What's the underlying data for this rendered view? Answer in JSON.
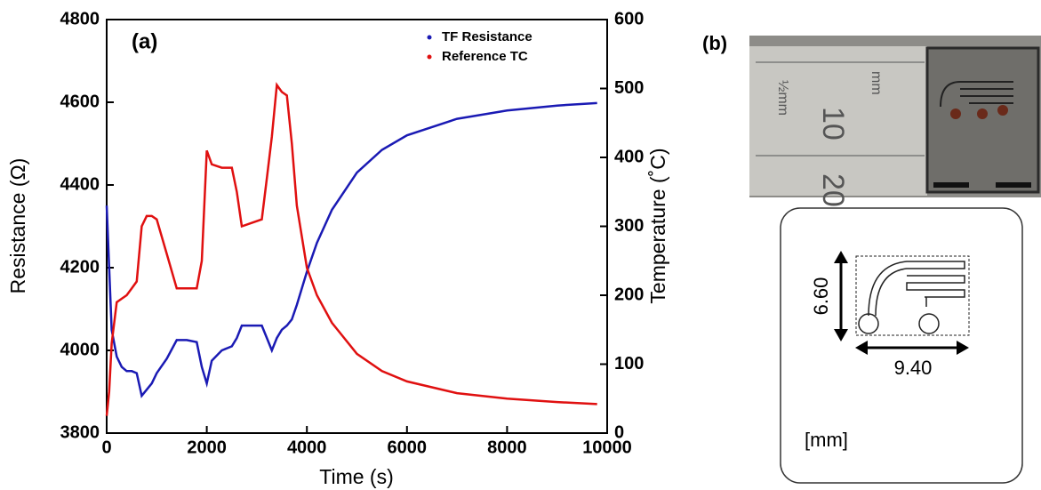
{
  "chart_data": {
    "type": "line",
    "annotation": "(a)",
    "x_label": "Time (s)",
    "y_label": "Resistance (Ω)",
    "y2_label": "Temperature (˚C)",
    "x": [
      0,
      50,
      100,
      200,
      300,
      400,
      500,
      600,
      700,
      800,
      900,
      1000,
      1200,
      1400,
      1600,
      1800,
      1900,
      2000,
      2100,
      2300,
      2500,
      2600,
      2700,
      2900,
      3100,
      3200,
      3300,
      3400,
      3500,
      3600,
      3700,
      3800,
      4000,
      4200,
      4500,
      5000,
      5500,
      6000,
      7000,
      8000,
      9000,
      9800
    ],
    "series": [
      {
        "name": "TF Resistance",
        "color": "#1a1ab4",
        "axis": "y",
        "values": [
          4350,
          4200,
          4050,
          3985,
          3960,
          3950,
          3950,
          3945,
          3890,
          3905,
          3920,
          3945,
          3980,
          4025,
          4025,
          4020,
          3960,
          3920,
          3975,
          4000,
          4010,
          4030,
          4060,
          4060,
          4060,
          4030,
          4000,
          4030,
          4050,
          4060,
          4075,
          4110,
          4190,
          4260,
          4340,
          4430,
          4485,
          4520,
          4560,
          4580,
          4592,
          4598
        ]
      },
      {
        "name": "Reference TC",
        "color": "#e01010",
        "axis": "y2",
        "values": [
          25,
          60,
          130,
          190,
          195,
          200,
          210,
          220,
          300,
          315,
          315,
          310,
          260,
          210,
          210,
          210,
          250,
          410,
          390,
          385,
          385,
          350,
          300,
          305,
          310,
          370,
          430,
          505,
          495,
          490,
          420,
          330,
          240,
          200,
          160,
          115,
          90,
          75,
          58,
          50,
          45,
          42
        ]
      }
    ],
    "xlim": [
      0,
      10000
    ],
    "xticks": [
      0,
      2000,
      4000,
      6000,
      8000,
      10000
    ],
    "ylim": [
      3800,
      4800
    ],
    "yticks": [
      3800,
      4000,
      4200,
      4400,
      4600,
      4800
    ],
    "y2lim": [
      0,
      600
    ],
    "y2ticks": [
      0,
      100,
      200,
      300,
      400,
      500,
      600
    ],
    "legend": "upper-right"
  },
  "panel_b": {
    "label": "(b)",
    "height": "6.60",
    "width": "9.40",
    "unit": "[mm]",
    "ruler_labels": [
      "½mm",
      "mm",
      "10",
      "20"
    ]
  }
}
